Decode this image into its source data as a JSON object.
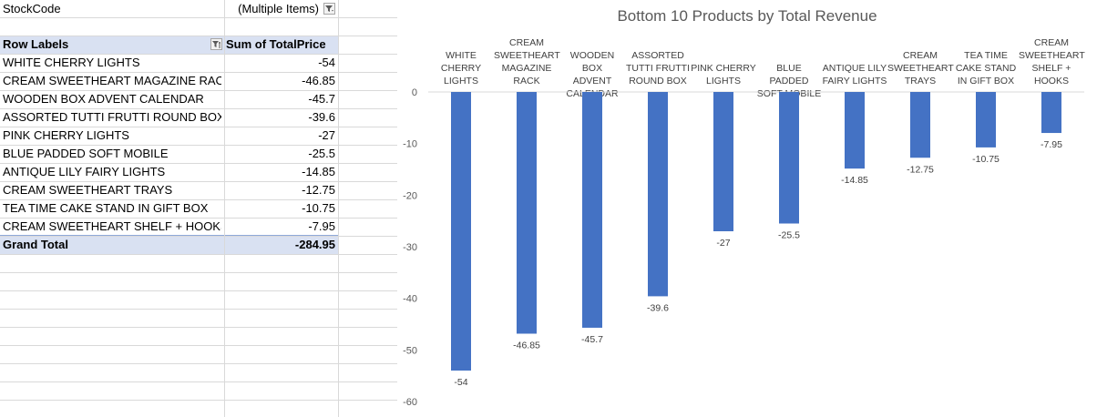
{
  "pivot": {
    "filter_field": "StockCode",
    "filter_value": "(Multiple Items)",
    "row_labels_header": "Row Labels",
    "sum_header": "Sum of TotalPrice",
    "rows": [
      {
        "label": "WHITE CHERRY LIGHTS",
        "value": "-54"
      },
      {
        "label": "CREAM SWEETHEART MAGAZINE RACK",
        "value": "-46.85"
      },
      {
        "label": "WOODEN BOX ADVENT CALENDAR",
        "value": "-45.7"
      },
      {
        "label": "ASSORTED TUTTI FRUTTI ROUND BOX",
        "value": "-39.6"
      },
      {
        "label": "PINK CHERRY LIGHTS",
        "value": "-27"
      },
      {
        "label": "BLUE PADDED SOFT MOBILE",
        "value": "-25.5"
      },
      {
        "label": "ANTIQUE LILY FAIRY LIGHTS",
        "value": "-14.85"
      },
      {
        "label": "CREAM SWEETHEART TRAYS",
        "value": "-12.75"
      },
      {
        "label": "TEA TIME CAKE STAND IN GIFT BOX",
        "value": "-10.75"
      },
      {
        "label": "CREAM SWEETHEART SHELF + HOOKS",
        "value": "-7.95"
      }
    ],
    "grand_total_label": "Grand Total",
    "grand_total_value": "-284.95"
  },
  "colors": {
    "bar": "#4472c4",
    "header_band": "#d9e1f2",
    "gridline": "#d9d9d9"
  },
  "chart_data": {
    "type": "bar",
    "title": "Bottom 10 Products by Total Revenue",
    "categories": [
      "WHITE\nCHERRY\nLIGHTS",
      "CREAM\nSWEETHEART\nMAGAZINE\nRACK",
      "WOODEN BOX\nADVENT\nCALENDAR",
      "ASSORTED\nTUTTI FRUTTI\nROUND BOX",
      "PINK CHERRY\nLIGHTS",
      "BLUE PADDED\nSOFT MOBILE",
      "ANTIQUE LILY\nFAIRY LIGHTS",
      "CREAM\nSWEETHEART\nTRAYS",
      "TEA TIME\nCAKE STAND\nIN GIFT BOX",
      "CREAM\nSWEETHEART\nSHELF +\nHOOKS"
    ],
    "values": [
      -54,
      -46.85,
      -45.7,
      -39.6,
      -27,
      -25.5,
      -14.85,
      -12.75,
      -10.75,
      -7.95
    ],
    "data_labels": [
      "-54",
      "-46.85",
      "-45.7",
      "-39.6",
      "-27",
      "-25.5",
      "-14.85",
      "-12.75",
      "-10.75",
      "-7.95"
    ],
    "ylim": [
      -60,
      0
    ],
    "yticks": [
      0,
      -10,
      -20,
      -30,
      -40,
      -50,
      -60
    ],
    "grid": false,
    "legend": "none"
  }
}
